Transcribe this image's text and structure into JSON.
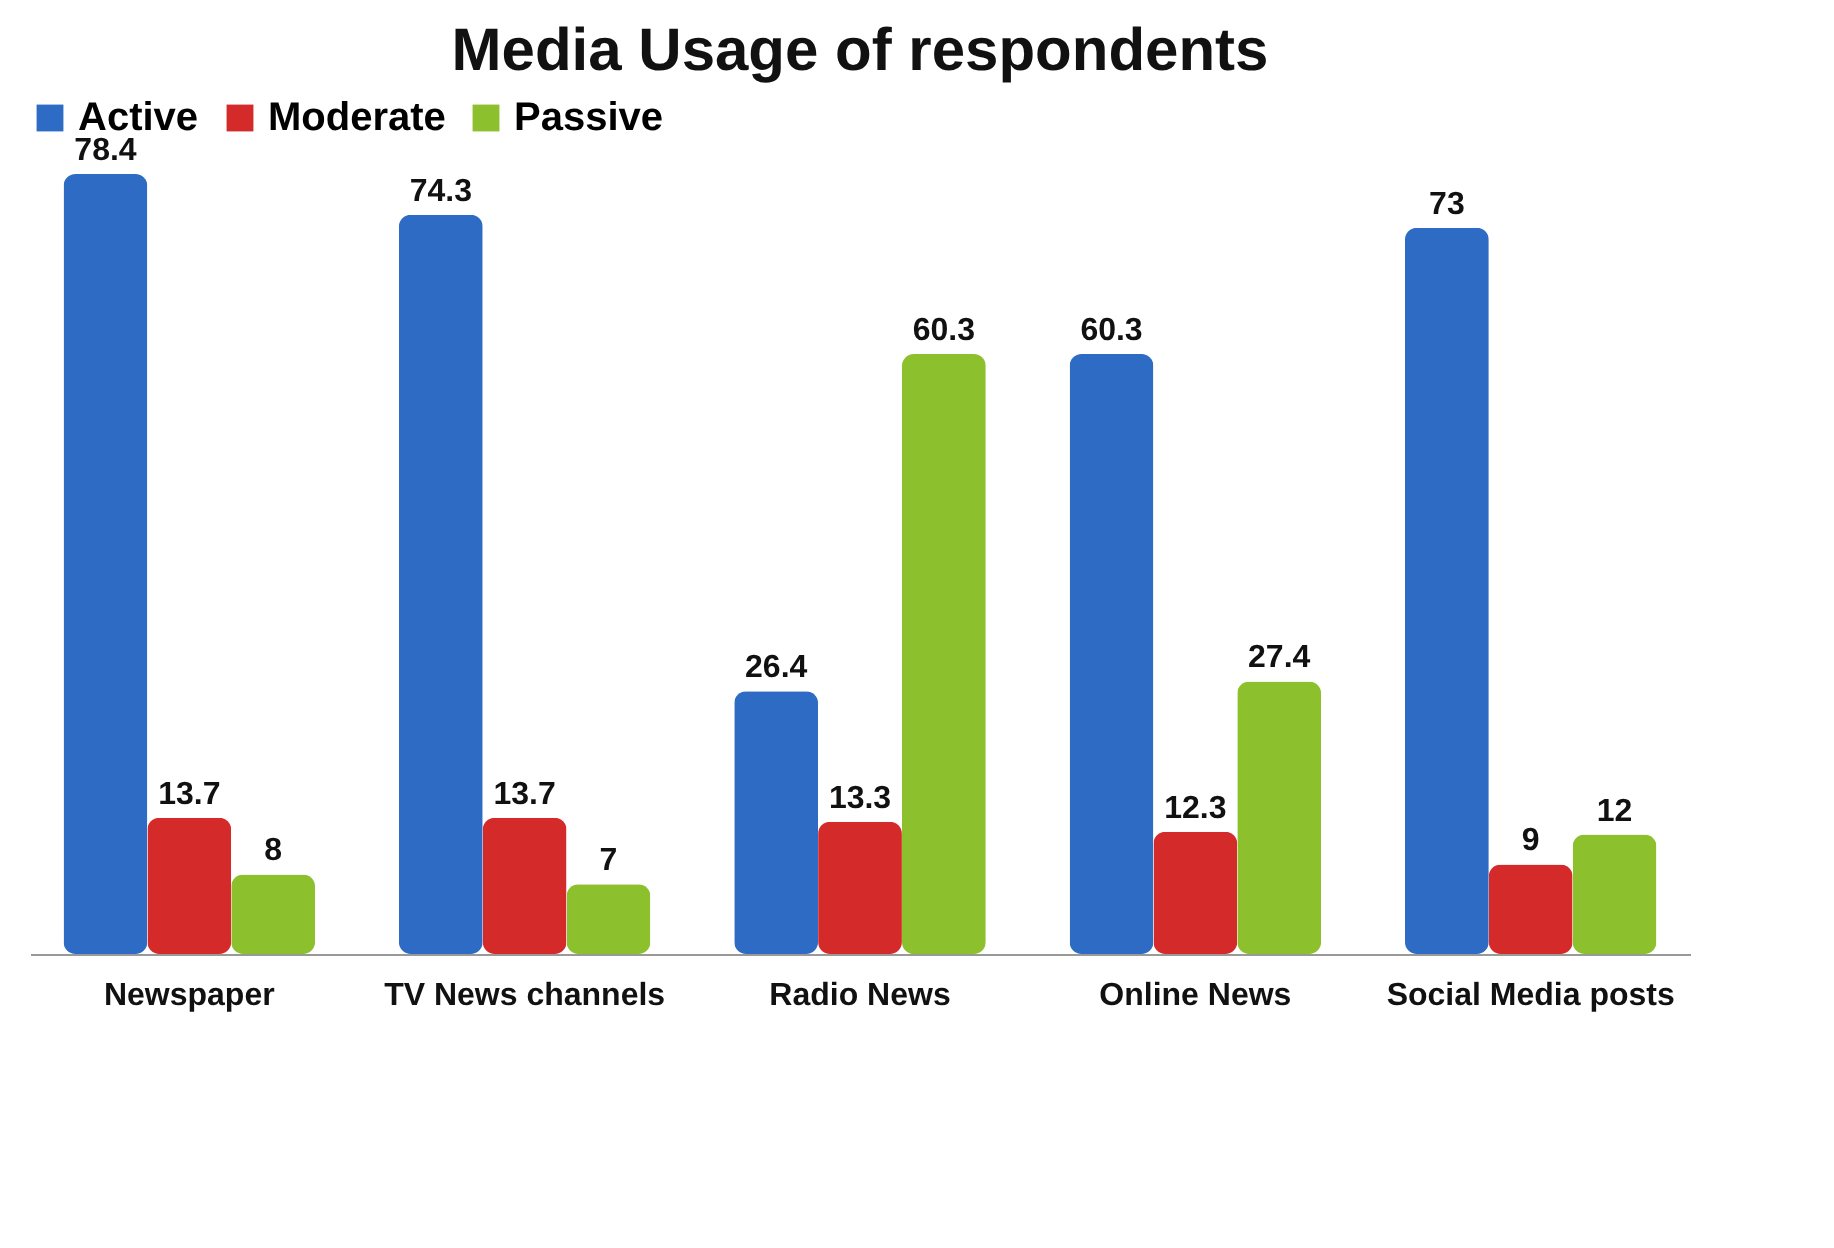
{
  "chart_data": {
    "type": "bar",
    "title": "Media Usage of respondents",
    "categories": [
      "Newspaper",
      "TV News channels",
      "Radio News",
      "Online News",
      "Social Media posts"
    ],
    "series": [
      {
        "name": "Active",
        "color": "#2e6bc4",
        "values": [
          78.4,
          74.3,
          26.4,
          60.3,
          73
        ]
      },
      {
        "name": "Moderate",
        "color": "#d42a2a",
        "values": [
          13.7,
          13.7,
          13.3,
          12.3,
          9
        ]
      },
      {
        "name": "Passive",
        "color": "#8cc02c",
        "values": [
          8,
          7,
          60.3,
          27.4,
          12
        ]
      }
    ],
    "data_labels": true,
    "legend": "top",
    "grid": false
  }
}
